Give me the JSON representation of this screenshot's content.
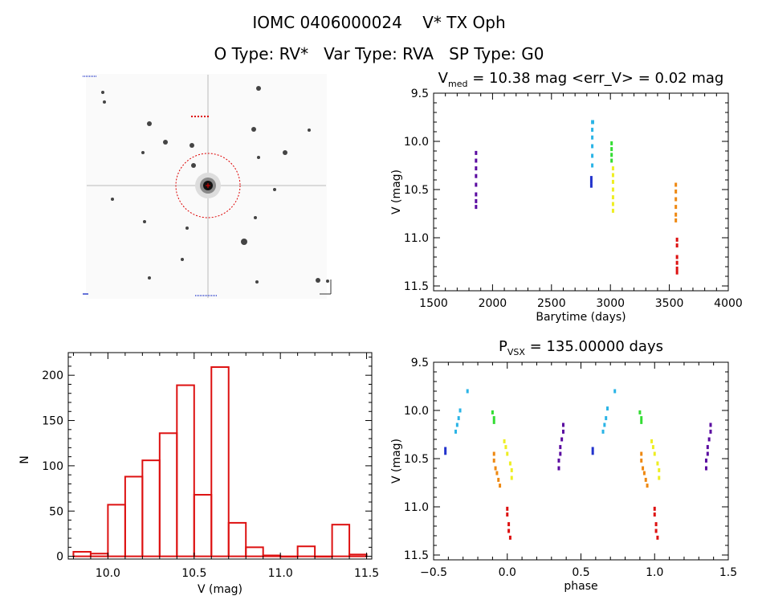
{
  "header": {
    "line1": "IOMC 0406000024    V* TX Oph",
    "line2": "O Type: RV*   Var Type: RVA   SP Type: G0"
  },
  "colors": {
    "histogram": "#dd1111",
    "target_circle": "#dd0000",
    "phase_palette": [
      "#5a0aa0",
      "#2233cc",
      "#2ab4e6",
      "#33dd33",
      "#eeee22",
      "#ee8811",
      "#dd1111"
    ]
  },
  "chart_data": [
    {
      "type": "image",
      "panel": "finder-image",
      "caption": "field image of the target star with a red circle marking its position"
    },
    {
      "type": "scatter",
      "panel": "light-curve",
      "title": {
        "prefix": "V",
        "sub": "med",
        "rest": " = 10.38 mag <err_V> = 0.02 mag"
      },
      "xlabel": "Barytime (days)",
      "ylabel": "V (mag)",
      "xlim": [
        1500,
        4000
      ],
      "ylim": [
        11.55,
        9.5
      ],
      "xticks": [
        1500,
        2000,
        2500,
        3000,
        3500,
        4000
      ],
      "yticks": [
        9.5,
        10.0,
        10.5,
        11.0,
        11.5
      ],
      "ytick_labels": [
        "9.5",
        "10.0",
        "10.5",
        "11.0",
        "11.5"
      ],
      "series": [
        {
          "color": "#5a0aa0",
          "points": [
            [
              1860,
              10.12
            ],
            [
              1860,
              10.2
            ],
            [
              1860,
              10.28
            ],
            [
              1860,
              10.36
            ],
            [
              1860,
              10.45
            ],
            [
              1860,
              10.55
            ],
            [
              1860,
              10.62
            ],
            [
              1860,
              10.68
            ]
          ]
        },
        {
          "color": "#2233cc",
          "points": [
            [
              2838,
              10.38
            ],
            [
              2838,
              10.42
            ],
            [
              2838,
              10.46
            ]
          ]
        },
        {
          "color": "#2ab4e6",
          "points": [
            [
              2846,
              9.8
            ],
            [
              2846,
              9.88
            ],
            [
              2846,
              9.96
            ],
            [
              2846,
              10.05
            ],
            [
              2846,
              10.15
            ],
            [
              2846,
              10.25
            ]
          ]
        },
        {
          "color": "#2ab4e6",
          "points": [
            [
              2852,
              9.8
            ]
          ]
        },
        {
          "color": "#33dd33",
          "points": [
            [
              3010,
              10.02
            ],
            [
              3010,
              10.08
            ],
            [
              3010,
              10.14
            ],
            [
              3010,
              10.2
            ]
          ]
        },
        {
          "color": "#eeee22",
          "points": [
            [
              3022,
              10.28
            ],
            [
              3022,
              10.35
            ],
            [
              3022,
              10.42
            ],
            [
              3022,
              10.5
            ],
            [
              3022,
              10.58
            ],
            [
              3022,
              10.65
            ],
            [
              3022,
              10.72
            ]
          ]
        },
        {
          "color": "#ee8811",
          "points": [
            [
              3555,
              10.45
            ],
            [
              3555,
              10.52
            ],
            [
              3555,
              10.6
            ],
            [
              3555,
              10.68
            ],
            [
              3555,
              10.76
            ],
            [
              3555,
              10.82
            ]
          ]
        },
        {
          "color": "#dd1111",
          "points": [
            [
              3565,
              11.02
            ],
            [
              3565,
              11.08
            ],
            [
              3565,
              11.2
            ],
            [
              3565,
              11.26
            ],
            [
              3565,
              11.32
            ],
            [
              3565,
              11.36
            ]
          ]
        }
      ]
    },
    {
      "type": "bar",
      "panel": "histogram",
      "xlabel": "V (mag)",
      "ylabel": "N",
      "xlim": [
        9.77,
        11.53
      ],
      "ylim": [
        -3,
        225
      ],
      "xticks": [
        10.0,
        10.5,
        11.0,
        11.5
      ],
      "xtick_labels": [
        "10.0",
        "10.5",
        "11.0",
        "11.5"
      ],
      "yticks": [
        0,
        50,
        100,
        150,
        200
      ],
      "bin_edges": [
        9.8,
        9.9,
        10.0,
        10.1,
        10.2,
        10.3,
        10.4,
        10.5,
        10.6,
        10.7,
        10.8,
        10.9,
        11.0,
        11.1,
        11.2,
        11.3,
        11.4
      ],
      "values": [
        5,
        3,
        57,
        88,
        106,
        136,
        189,
        68,
        209,
        37,
        10,
        1,
        0,
        11,
        0,
        35,
        2
      ]
    },
    {
      "type": "scatter",
      "panel": "phase-curve",
      "title": {
        "prefix": "P",
        "sub": "VSX",
        "rest": " = 135.00000 days"
      },
      "xlabel": "phase",
      "ylabel": "V (mag)",
      "xlim": [
        -0.5,
        1.5
      ],
      "ylim": [
        11.55,
        9.5
      ],
      "xticks": [
        -0.5,
        0.0,
        0.5,
        1.0,
        1.5
      ],
      "xtick_labels": [
        "−0.5",
        "0.0",
        "0.5",
        "1.0",
        "1.5"
      ],
      "yticks": [
        9.5,
        10.0,
        10.5,
        11.0,
        11.5
      ],
      "ytick_labels": [
        "9.5",
        "10.0",
        "10.5",
        "11.0",
        "11.5"
      ],
      "series": [
        {
          "color": "#2233cc",
          "points": [
            [
              -0.42,
              10.4
            ],
            [
              -0.42,
              10.44
            ],
            [
              0.58,
              10.4
            ],
            [
              0.58,
              10.44
            ]
          ]
        },
        {
          "color": "#2ab4e6",
          "points": [
            [
              -0.35,
              10.22
            ],
            [
              -0.34,
              10.15
            ],
            [
              -0.33,
              10.08
            ],
            [
              -0.32,
              10.0
            ],
            [
              -0.27,
              9.8
            ],
            [
              0.65,
              10.22
            ],
            [
              0.66,
              10.15
            ],
            [
              0.67,
              10.08
            ],
            [
              0.68,
              9.98
            ],
            [
              0.73,
              9.8
            ]
          ]
        },
        {
          "color": "#33dd33",
          "points": [
            [
              -0.1,
              10.02
            ],
            [
              -0.09,
              10.08
            ],
            [
              -0.09,
              10.12
            ],
            [
              0.9,
              10.02
            ],
            [
              0.91,
              10.08
            ],
            [
              0.91,
              10.12
            ]
          ]
        },
        {
          "color": "#eeee22",
          "points": [
            [
              -0.02,
              10.32
            ],
            [
              -0.01,
              10.38
            ],
            [
              0.0,
              10.45
            ],
            [
              0.02,
              10.55
            ],
            [
              0.03,
              10.62
            ],
            [
              0.03,
              10.7
            ],
            [
              0.98,
              10.32
            ],
            [
              0.99,
              10.38
            ],
            [
              1.0,
              10.45
            ],
            [
              1.02,
              10.55
            ],
            [
              1.03,
              10.62
            ],
            [
              1.03,
              10.7
            ]
          ]
        },
        {
          "color": "#ee8811",
          "points": [
            [
              -0.09,
              10.45
            ],
            [
              -0.09,
              10.52
            ],
            [
              -0.08,
              10.6
            ],
            [
              -0.07,
              10.65
            ],
            [
              -0.06,
              10.72
            ],
            [
              -0.05,
              10.78
            ],
            [
              0.91,
              10.45
            ],
            [
              0.91,
              10.52
            ],
            [
              0.92,
              10.6
            ],
            [
              0.93,
              10.65
            ],
            [
              0.94,
              10.72
            ],
            [
              0.95,
              10.78
            ]
          ]
        },
        {
          "color": "#dd1111",
          "points": [
            [
              0.0,
              11.02
            ],
            [
              0.0,
              11.08
            ],
            [
              0.01,
              11.18
            ],
            [
              0.01,
              11.25
            ],
            [
              0.02,
              11.32
            ],
            [
              1.0,
              11.02
            ],
            [
              1.0,
              11.08
            ],
            [
              1.01,
              11.18
            ],
            [
              1.01,
              11.25
            ],
            [
              1.02,
              11.32
            ]
          ]
        },
        {
          "color": "#5a0aa0",
          "points": [
            [
              0.35,
              10.6
            ],
            [
              0.35,
              10.52
            ],
            [
              0.36,
              10.45
            ],
            [
              0.36,
              10.38
            ],
            [
              0.37,
              10.3
            ],
            [
              0.38,
              10.22
            ],
            [
              0.38,
              10.15
            ],
            [
              1.35,
              10.6
            ],
            [
              1.35,
              10.52
            ],
            [
              1.36,
              10.45
            ],
            [
              1.36,
              10.38
            ],
            [
              1.37,
              10.3
            ],
            [
              1.38,
              10.22
            ],
            [
              1.38,
              10.15
            ]
          ]
        }
      ]
    }
  ]
}
